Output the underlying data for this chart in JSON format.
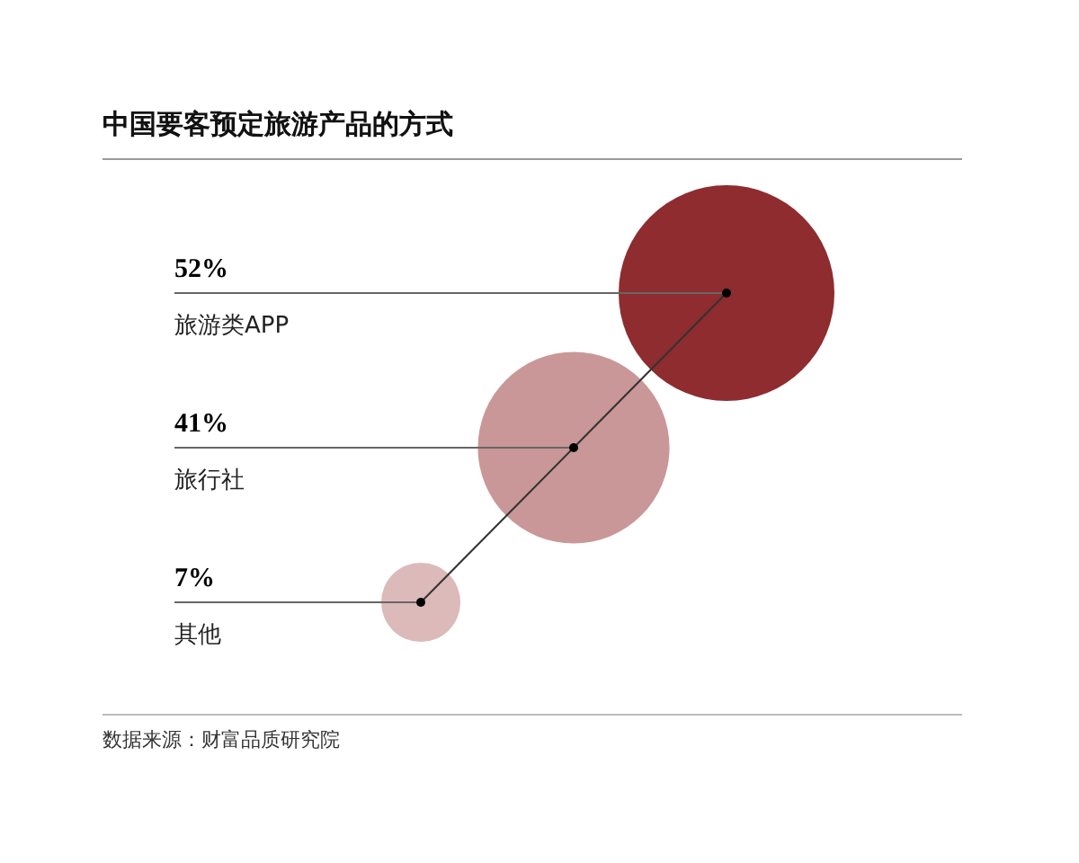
{
  "chart_data": {
    "type": "other",
    "title": "中国要客预定旅游产品的方式",
    "categories": [
      "旅游类APP",
      "旅行社",
      "其他"
    ],
    "values": [
      52,
      41,
      7
    ],
    "value_labels": [
      "52%",
      "41%",
      "7%"
    ],
    "colors": [
      "#8e2c2f",
      "#c99797",
      "#dcbaba"
    ],
    "annotations": [
      "数据来源：财富品质研究院"
    ]
  }
}
